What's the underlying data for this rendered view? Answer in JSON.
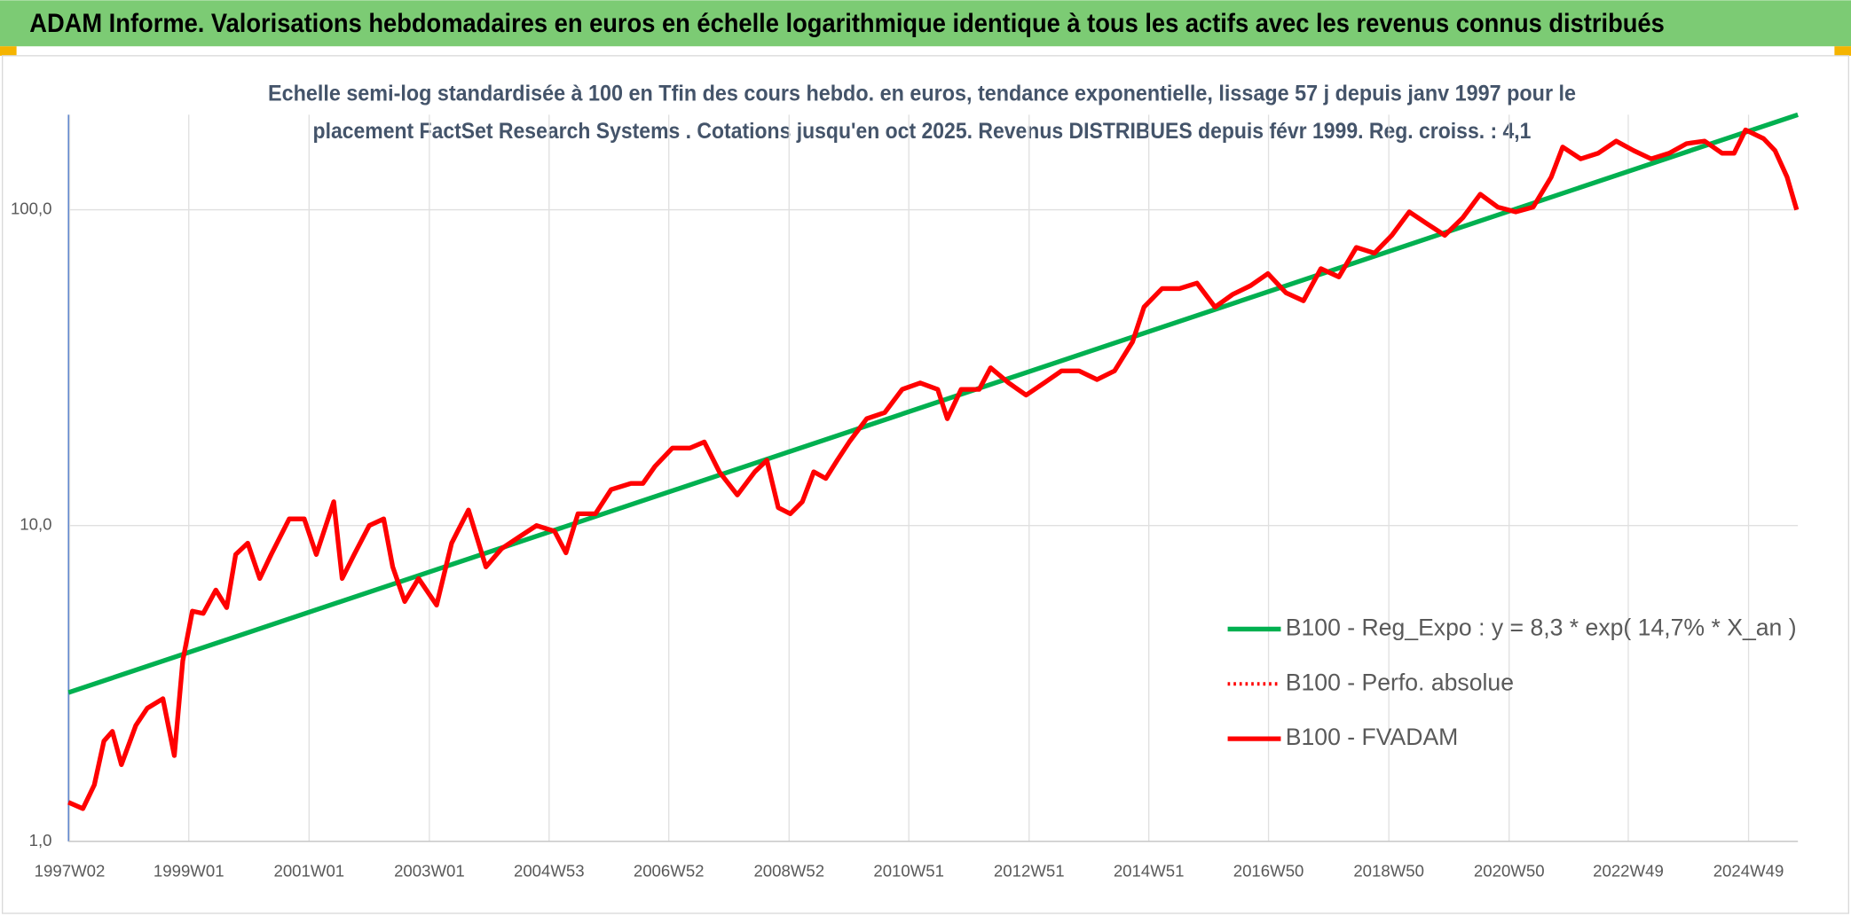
{
  "chart_data": {
    "type": "line",
    "title": "ADAM Informe. Valorisations hebdomadaires en euros en échelle logarithmique identique à tous les actifs avec les revenus connus distribués",
    "subtitle": [
      "Echelle semi-log standardisée à 100 en Tfin des cours hebdo. en euros, tendance exponentielle, lissage 57 j depuis janv 1997 pour le",
      "placement FactSet Research Systems . Cotations jusqu'en oct 2025. Revenus DISTRIBUES depuis févr 1999. Reg. croiss. : 4,1"
    ],
    "yscale": "log",
    "ylim": [
      1,
      200
    ],
    "yticks": [
      {
        "value": 1,
        "label": "1,0"
      },
      {
        "value": 10,
        "label": "10,0"
      },
      {
        "value": 100,
        "label": "100,0"
      }
    ],
    "xlim": [
      1997.0,
      2025.75
    ],
    "xticks": [
      {
        "value": 1997.02,
        "label": "1997W02"
      },
      {
        "value": 1999.0,
        "label": "1999W01"
      },
      {
        "value": 2001.0,
        "label": "2001W01"
      },
      {
        "value": 2003.0,
        "label": "2003W01"
      },
      {
        "value": 2004.99,
        "label": "2004W53"
      },
      {
        "value": 2006.98,
        "label": "2006W52"
      },
      {
        "value": 2008.98,
        "label": "2008W52"
      },
      {
        "value": 2010.97,
        "label": "2010W51"
      },
      {
        "value": 2012.97,
        "label": "2012W51"
      },
      {
        "value": 2014.96,
        "label": "2014W51"
      },
      {
        "value": 2016.95,
        "label": "2016W50"
      },
      {
        "value": 2018.95,
        "label": "2018W50"
      },
      {
        "value": 2020.95,
        "label": "2020W50"
      },
      {
        "value": 2022.93,
        "label": "2022W49"
      },
      {
        "value": 2024.93,
        "label": "2024W49"
      }
    ],
    "grid": true,
    "legend": "lower right",
    "series": [
      {
        "name": "B100 - Reg_Expo : y = 8,3 * exp( 14,7% *  X_an )",
        "color": "#00b050",
        "style": "solid",
        "x": [
          1997.0,
          2025.75
        ],
        "values": [
          2.96,
          200
        ]
      },
      {
        "name": "B100 - Perfo. absolue",
        "color": "#ff0000",
        "style": "dotted",
        "x": [
          1997.0,
          1997.24,
          1997.43,
          1997.59,
          1997.73,
          1997.88,
          1998.12,
          1998.31,
          1998.57,
          1998.76,
          1998.9,
          1999.06,
          1999.24,
          1999.45,
          1999.63,
          1999.78,
          1999.98,
          2000.18,
          2000.37,
          2000.67,
          2000.92,
          2001.12,
          2001.41,
          2001.55,
          2001.75,
          2002.0,
          2002.24,
          2002.39,
          2002.59,
          2002.82,
          2003.12,
          2003.37,
          2003.65,
          2003.94,
          2004.2,
          2004.49,
          2004.78,
          2005.08,
          2005.27,
          2005.47,
          2005.76,
          2006.02,
          2006.35,
          2006.55,
          2006.75,
          2007.04,
          2007.33,
          2007.57,
          2007.82,
          2008.12,
          2008.41,
          2008.61,
          2008.8,
          2009.0,
          2009.2,
          2009.39,
          2009.59,
          2009.78,
          2009.98,
          2010.27,
          2010.57,
          2010.86,
          2011.16,
          2011.45,
          2011.61,
          2011.84,
          2012.14,
          2012.33,
          2012.63,
          2012.92,
          2013.22,
          2013.51,
          2013.8,
          2014.1,
          2014.39,
          2014.69,
          2014.88,
          2015.18,
          2015.47,
          2015.76,
          2016.06,
          2016.35,
          2016.65,
          2016.94,
          2017.24,
          2017.53,
          2017.82,
          2018.12,
          2018.41,
          2018.71,
          2019.0,
          2019.29,
          2019.59,
          2019.88,
          2020.18,
          2020.47,
          2020.76,
          2021.06,
          2021.35,
          2021.65,
          2021.84,
          2022.14,
          2022.43,
          2022.73,
          2023.02,
          2023.31,
          2023.61,
          2023.9,
          2024.2,
          2024.49,
          2024.69,
          2024.88,
          2025.18,
          2025.37,
          2025.57,
          2025.73
        ],
        "values": [
          1.33,
          1.27,
          1.51,
          2.08,
          2.23,
          1.75,
          2.33,
          2.64,
          2.83,
          1.87,
          3.73,
          5.36,
          5.27,
          6.25,
          5.5,
          8.1,
          8.8,
          6.8,
          8.1,
          10.5,
          10.5,
          8.1,
          11.9,
          6.8,
          8.1,
          10.0,
          10.5,
          7.4,
          5.75,
          6.8,
          5.6,
          8.8,
          11.2,
          7.4,
          8.45,
          9.2,
          10.0,
          9.6,
          8.2,
          10.9,
          10.9,
          13.0,
          13.6,
          13.6,
          15.4,
          17.6,
          17.6,
          18.4,
          14.8,
          12.5,
          14.8,
          16.1,
          11.4,
          10.9,
          11.9,
          14.8,
          14.1,
          16.1,
          18.4,
          21.8,
          22.8,
          27.0,
          28.3,
          27.0,
          21.8,
          27.0,
          27.0,
          31.6,
          28.3,
          25.9,
          28.3,
          30.9,
          30.9,
          29.0,
          30.9,
          38.2,
          49.2,
          56.3,
          56.3,
          58.6,
          49.2,
          53.9,
          57.5,
          62.8,
          54.6,
          51.5,
          65.1,
          61.3,
          76.0,
          72.9,
          83.0,
          98.5,
          90.2,
          83.0,
          94.4,
          112,
          102,
          98.5,
          102,
          127,
          158,
          145,
          151,
          165,
          154,
          145,
          151,
          162,
          165,
          151,
          151,
          179,
          168,
          154,
          127,
          100
        ]
      },
      {
        "name": "B100 - FVADAM",
        "color": "#ff0000",
        "style": "solid",
        "x": [
          1997.0,
          1997.24,
          1997.43,
          1997.59,
          1997.73,
          1997.88,
          1998.12,
          1998.31,
          1998.57,
          1998.76,
          1998.9,
          1999.06,
          1999.24,
          1999.45,
          1999.63,
          1999.78,
          1999.98,
          2000.18,
          2000.37,
          2000.67,
          2000.92,
          2001.12,
          2001.41,
          2001.55,
          2001.75,
          2002.0,
          2002.24,
          2002.39,
          2002.59,
          2002.82,
          2003.12,
          2003.37,
          2003.65,
          2003.94,
          2004.2,
          2004.49,
          2004.78,
          2005.08,
          2005.27,
          2005.47,
          2005.76,
          2006.02,
          2006.35,
          2006.55,
          2006.75,
          2007.04,
          2007.33,
          2007.57,
          2007.82,
          2008.12,
          2008.41,
          2008.61,
          2008.8,
          2009.0,
          2009.2,
          2009.39,
          2009.59,
          2009.78,
          2009.98,
          2010.27,
          2010.57,
          2010.86,
          2011.16,
          2011.45,
          2011.61,
          2011.84,
          2012.14,
          2012.33,
          2012.63,
          2012.92,
          2013.22,
          2013.51,
          2013.8,
          2014.1,
          2014.39,
          2014.69,
          2014.88,
          2015.18,
          2015.47,
          2015.76,
          2016.06,
          2016.35,
          2016.65,
          2016.94,
          2017.24,
          2017.53,
          2017.82,
          2018.12,
          2018.41,
          2018.71,
          2019.0,
          2019.29,
          2019.59,
          2019.88,
          2020.18,
          2020.47,
          2020.76,
          2021.06,
          2021.35,
          2021.65,
          2021.84,
          2022.14,
          2022.43,
          2022.73,
          2023.02,
          2023.31,
          2023.61,
          2023.9,
          2024.2,
          2024.49,
          2024.69,
          2024.88,
          2025.18,
          2025.37,
          2025.57,
          2025.73
        ],
        "values": [
          1.33,
          1.27,
          1.51,
          2.08,
          2.23,
          1.75,
          2.33,
          2.64,
          2.83,
          1.87,
          3.73,
          5.36,
          5.27,
          6.25,
          5.5,
          8.1,
          8.8,
          6.8,
          8.1,
          10.5,
          10.5,
          8.1,
          11.9,
          6.8,
          8.1,
          10.0,
          10.5,
          7.4,
          5.75,
          6.8,
          5.6,
          8.8,
          11.2,
          7.4,
          8.45,
          9.2,
          10.0,
          9.6,
          8.2,
          10.9,
          10.9,
          13.0,
          13.6,
          13.6,
          15.4,
          17.6,
          17.6,
          18.4,
          14.8,
          12.5,
          14.8,
          16.1,
          11.4,
          10.9,
          11.9,
          14.8,
          14.1,
          16.1,
          18.4,
          21.8,
          22.8,
          27.0,
          28.3,
          27.0,
          21.8,
          27.0,
          27.0,
          31.6,
          28.3,
          25.9,
          28.3,
          30.9,
          30.9,
          29.0,
          30.9,
          38.2,
          49.2,
          56.3,
          56.3,
          58.6,
          49.2,
          53.9,
          57.5,
          62.8,
          54.6,
          51.5,
          65.1,
          61.3,
          76.0,
          72.9,
          83.0,
          98.5,
          90.2,
          83.0,
          94.4,
          112,
          102,
          98.5,
          102,
          127,
          158,
          145,
          151,
          165,
          154,
          145,
          151,
          162,
          165,
          151,
          151,
          179,
          168,
          154,
          127,
          100
        ]
      }
    ]
  }
}
